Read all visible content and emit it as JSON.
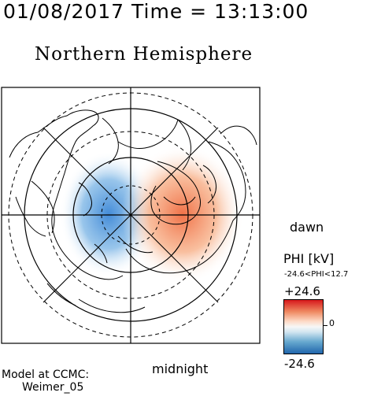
{
  "header": {
    "timestamp": "01/08/2017 Time = 13:13:00",
    "title": "Northern Hemisphere"
  },
  "orientation": {
    "dawn_label": "dawn",
    "midnight_label": "midnight"
  },
  "colorbar": {
    "label": "PHI [kV]",
    "range_text": "-24.6<PHI<12.7",
    "max_label": "+24.6",
    "min_label": "-24.6",
    "zero_label": "0",
    "max_color": "#d7191c",
    "mid_color": "#f7f7f7",
    "min_color": "#2166ac"
  },
  "footer": {
    "model_line1": "Model at CCMC:",
    "model_line2": "Weimer_05"
  },
  "potential_cells": [
    {
      "sign": "negative",
      "side": "dusk",
      "color": "#4a90d9"
    },
    {
      "sign": "positive",
      "side": "dawn",
      "color": "#f07a50"
    }
  ]
}
